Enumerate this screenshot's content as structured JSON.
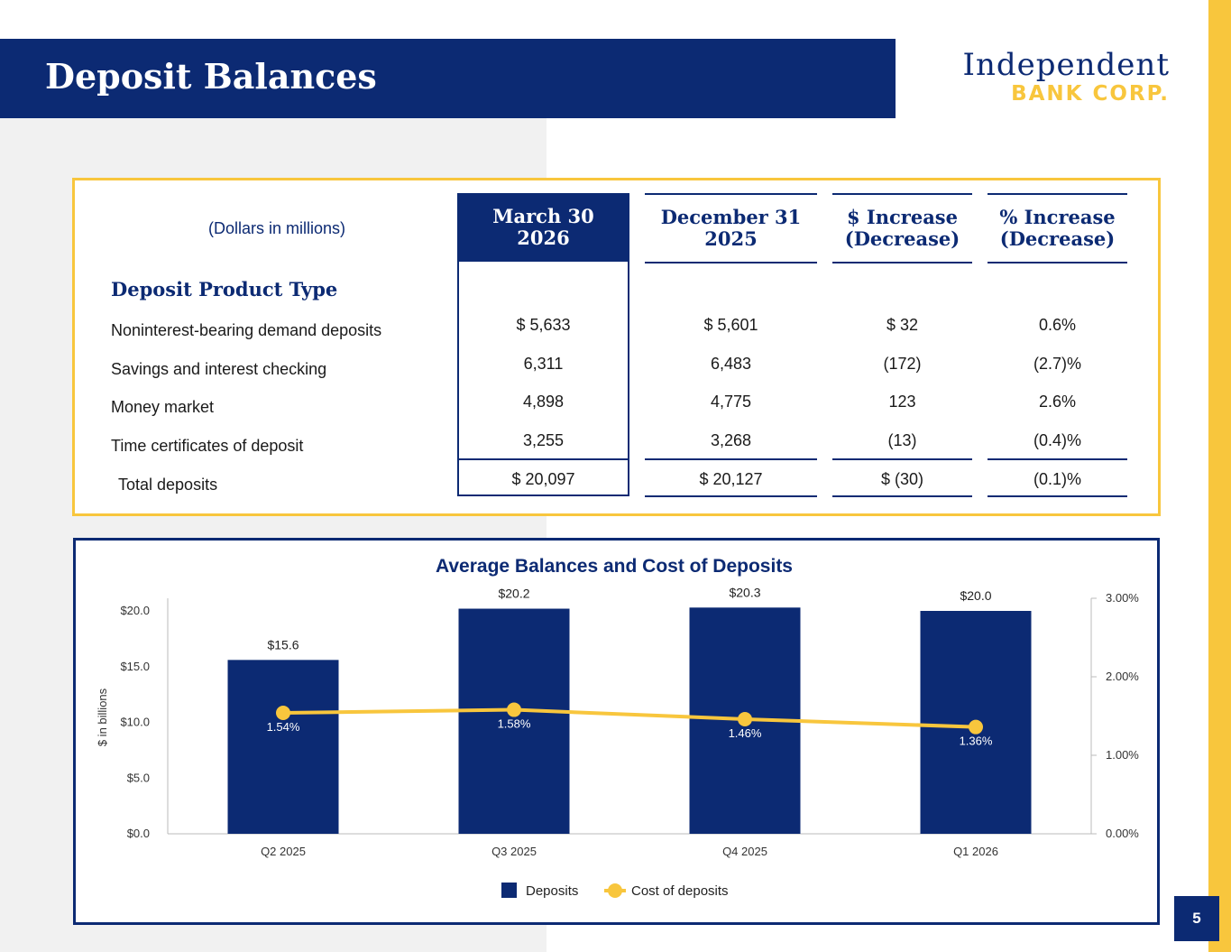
{
  "header": {
    "title": "Deposit Balances",
    "logo_line1": "Independent",
    "logo_line2": "BANK CORP.",
    "page_number": "5"
  },
  "table": {
    "units_note": "(Dollars in millions)",
    "section_label": "Deposit Product Type",
    "columns": [
      {
        "line1": "March 30",
        "line2": "2026"
      },
      {
        "line1": "December 31",
        "line2": "2025"
      },
      {
        "line1": "$ Increase",
        "line2": "(Decrease)"
      },
      {
        "line1": "% Increase",
        "line2": "(Decrease)"
      }
    ],
    "rows": [
      {
        "label": "Noninterest-bearing demand deposits",
        "values": [
          "$ 5,633",
          "$ 5,601",
          "$ 32",
          "0.6%"
        ]
      },
      {
        "label": "Savings and interest checking",
        "values": [
          "6,311",
          "6,483",
          "(172)",
          "(2.7)%"
        ]
      },
      {
        "label": "Money market",
        "values": [
          "4,898",
          "4,775",
          "123",
          "2.6%"
        ]
      },
      {
        "label": "Time certificates of deposit",
        "values": [
          "3,255",
          "3,268",
          "(13)",
          "(0.4)%"
        ]
      },
      {
        "label": "Total deposits",
        "values": [
          "$ 20,097",
          "$ 20,127",
          "$ (30)",
          "(0.1)%"
        ]
      }
    ]
  },
  "chart_data": {
    "type": "bar",
    "title": "Average Balances and Cost of Deposits",
    "categories": [
      "Q2 2025",
      "Q3 2025",
      "Q4 2025",
      "Q1 2026"
    ],
    "ylabel": "$ in billions",
    "ylim": [
      0,
      20
    ],
    "yticks": [
      "$0.0",
      "$5.0",
      "$10.0",
      "$15.0",
      "$20.0"
    ],
    "y2lim": [
      0,
      3
    ],
    "y2ticks": [
      "0.00%",
      "1.00%",
      "2.00%",
      "3.00%"
    ],
    "legend_position": "bottom",
    "series": [
      {
        "name": "Deposits",
        "type": "bar",
        "axis": "left",
        "color": "#0c2a73",
        "values": [
          15.6,
          20.2,
          20.3,
          20.0
        ],
        "labels": [
          "$15.6",
          "$20.2",
          "$20.3",
          "$20.0"
        ]
      },
      {
        "name": "Cost of deposits",
        "type": "line",
        "axis": "right",
        "color": "#f8c63d",
        "values": [
          1.54,
          1.58,
          1.46,
          1.36
        ],
        "labels": [
          "1.54%",
          "1.58%",
          "1.46%",
          "1.36%"
        ]
      }
    ]
  }
}
